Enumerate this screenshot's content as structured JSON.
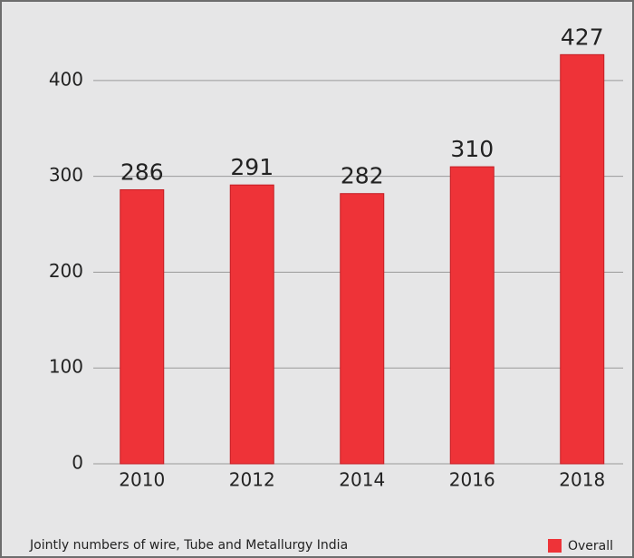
{
  "chart_data": {
    "type": "bar",
    "categories": [
      "2010",
      "2012",
      "2014",
      "2016",
      "2018"
    ],
    "series": [
      {
        "name": "Overall",
        "color": "#ee3338",
        "values": [
          286,
          291,
          282,
          310,
          427
        ]
      }
    ],
    "ylim": [
      0,
      450
    ],
    "yticks": [
      0,
      100,
      200,
      300,
      400
    ],
    "grid": true,
    "caption": "Jointly numbers of wire, Tube and Metallurgy India",
    "legend": "bottom-right"
  }
}
